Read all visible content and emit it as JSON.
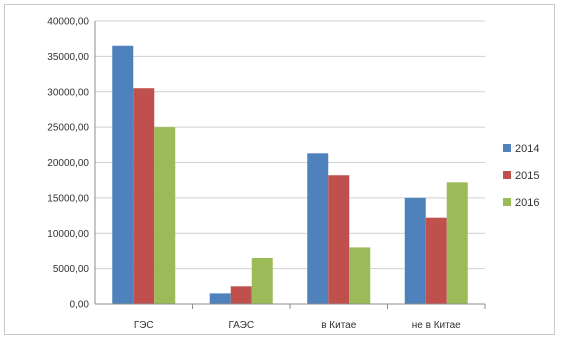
{
  "chart_data": {
    "type": "bar",
    "categories": [
      "ГЭС",
      "ГАЭС",
      "в Китае",
      "не в Китае"
    ],
    "series": [
      {
        "name": "2014",
        "color": "#4f81bd",
        "values": [
          36500,
          1500,
          21300,
          15000
        ]
      },
      {
        "name": "2015",
        "color": "#c0504d",
        "values": [
          30500,
          2500,
          18200,
          12200
        ]
      },
      {
        "name": "2016",
        "color": "#9bbb59",
        "values": [
          25000,
          6500,
          8000,
          17200
        ]
      }
    ],
    "yticks": [
      "0,00",
      "5000,00",
      "10000,00",
      "15000,00",
      "20000,00",
      "25000,00",
      "30000,00",
      "35000,00",
      "40000,00"
    ],
    "ylim": [
      0,
      40000
    ],
    "ystep": 5000,
    "grid": true,
    "legend_position": "right"
  }
}
